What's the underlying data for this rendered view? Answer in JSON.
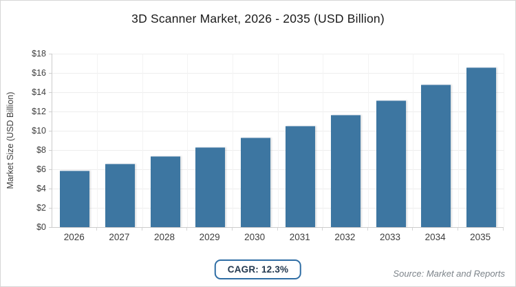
{
  "title": "3D Scanner Market, 2026 - 2035 (USD Billion)",
  "chart_data": {
    "type": "bar",
    "title": "3D Scanner Market, 2026 - 2035 (USD Billion)",
    "categories": [
      "2026",
      "2027",
      "2028",
      "2029",
      "2030",
      "2031",
      "2032",
      "2033",
      "2034",
      "2035"
    ],
    "values": [
      5.8,
      6.5,
      7.3,
      8.2,
      9.2,
      10.4,
      11.6,
      13.1,
      14.7,
      16.5
    ],
    "xlabel": "",
    "ylabel": "Market Size (USD Billion)",
    "ylim": [
      0,
      18
    ],
    "ytick_step": 2,
    "ytick_prefix": "$",
    "grid": true,
    "legend": false,
    "bar_color": "#3d76a1"
  },
  "footer": {
    "cagr_label": "CAGR: 12.3%",
    "source": "Source: Market and Reports"
  },
  "colors": {
    "bar": "#3d76a1",
    "badge_border": "#2e6da4",
    "badge_text": "#22384f",
    "grid_h": "#ededed",
    "grid_v": "#f3f3f3",
    "axis": "#cccccc",
    "tick_text": "#3d3d3d",
    "title_text": "#1a1a1a",
    "source_text": "#7d848a"
  }
}
